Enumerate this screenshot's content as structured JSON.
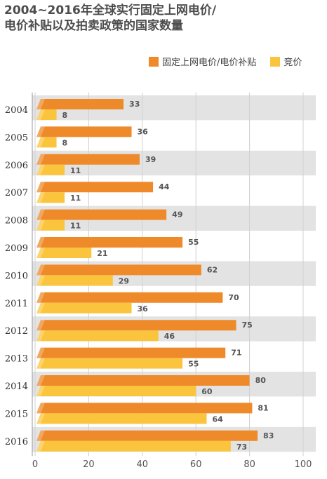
{
  "title_line1": "2004~2016年全球实行固定上网电价/",
  "title_line2": "电价补贴以及拍卖政策的国家数量",
  "legend": [
    {
      "label": "固定上网电价/电价补贴",
      "color": "#ee8a2a"
    },
    {
      "label": "竞价",
      "color": "#fbc43d"
    }
  ],
  "chart_data": {
    "type": "bar",
    "orientation": "horizontal",
    "title": "2004~2016年全球实行固定上网电价/电价补贴以及拍卖政策的国家数量",
    "categories": [
      "2004",
      "2005",
      "2006",
      "2007",
      "2008",
      "2009",
      "2010",
      "2011",
      "2012",
      "2013",
      "2014",
      "2015",
      "2016"
    ],
    "series": [
      {
        "name": "固定上网电价/电价补贴",
        "values": [
          33,
          36,
          39,
          44,
          49,
          55,
          62,
          70,
          75,
          71,
          80,
          81,
          83
        ],
        "color": "#ee8a2a"
      },
      {
        "name": "竞价",
        "values": [
          8,
          8,
          11,
          11,
          11,
          21,
          29,
          36,
          46,
          55,
          60,
          64,
          73
        ],
        "color": "#fbc43d"
      }
    ],
    "xlim": [
      0,
      100
    ],
    "xticks": [
      0,
      20,
      40,
      60,
      80,
      100
    ],
    "grid": true,
    "legend_position": "top-right"
  }
}
